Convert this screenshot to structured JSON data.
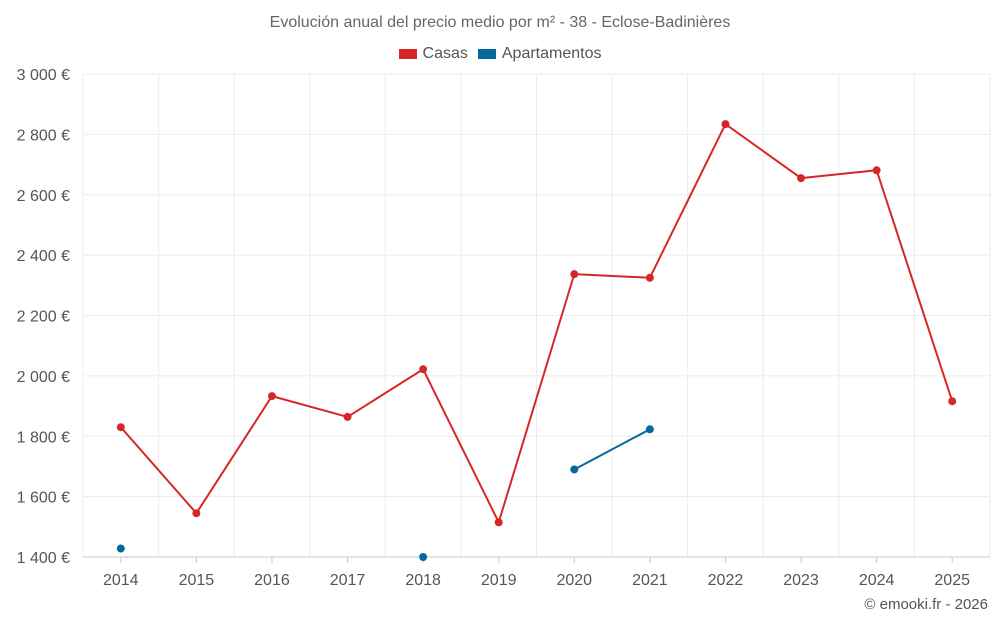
{
  "chart_data": {
    "type": "line",
    "title": "Evolución anual del precio medio por m² - 38 - Eclose-Badinières",
    "xlabel": "",
    "ylabel": "",
    "categories": [
      "2014",
      "2015",
      "2016",
      "2017",
      "2018",
      "2019",
      "2020",
      "2021",
      "2022",
      "2023",
      "2024",
      "2025"
    ],
    "ylim": [
      1400,
      3000
    ],
    "yticks": [
      1400,
      1600,
      1800,
      2000,
      2200,
      2400,
      2600,
      2800,
      3000
    ],
    "ytick_labels": [
      "1 400 €",
      "1 600 €",
      "1 800 €",
      "2 000 €",
      "2 200 €",
      "2 400 €",
      "2 600 €",
      "2 800 €",
      "3 000 €"
    ],
    "grid": true,
    "legend_position": "top-center",
    "series": [
      {
        "name": "Casas",
        "color": "#d62728",
        "values": [
          1830,
          1545,
          1933,
          1864,
          2022,
          1515,
          2337,
          2325,
          2834,
          2655,
          2681,
          1916
        ]
      },
      {
        "name": "Apartamentos",
        "color": "#07689f",
        "values": [
          1428,
          null,
          null,
          null,
          1400,
          null,
          1690,
          1823,
          null,
          null,
          null,
          null
        ]
      }
    ]
  },
  "footer": {
    "credit": "© emooki.fr - 2026"
  }
}
